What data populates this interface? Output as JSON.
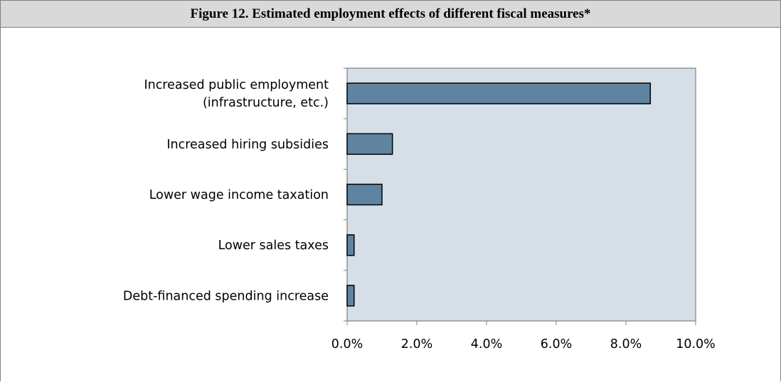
{
  "figure": {
    "title": "Figure 12. Estimated employment effects of different fiscal measures*"
  },
  "chart_data": {
    "type": "bar",
    "orientation": "horizontal",
    "title": "Figure 12. Estimated employment effects of different fiscal measures*",
    "categories": [
      [
        "Increased public employment",
        "(infrastructure, etc.)"
      ],
      [
        "Increased hiring subsidies"
      ],
      [
        "Lower wage income taxation"
      ],
      [
        "Lower sales taxes"
      ],
      [
        "Debt-financed spending increase"
      ]
    ],
    "values": [
      8.7,
      1.3,
      1.0,
      0.2,
      0.2
    ],
    "xlim": [
      0,
      10
    ],
    "xticks": [
      0,
      2,
      4,
      6,
      8,
      10
    ],
    "xtick_labels": [
      "0.0%",
      "2.0%",
      "4.0%",
      "6.0%",
      "8.0%",
      "10.0%"
    ],
    "xlabel": "",
    "ylabel": "",
    "grid": false,
    "legend": "none",
    "colors": {
      "bar_fill": "#5f84a1",
      "bar_stroke": "#000000",
      "plot_background": "#d6dfe7",
      "plot_border": "#808080"
    }
  }
}
